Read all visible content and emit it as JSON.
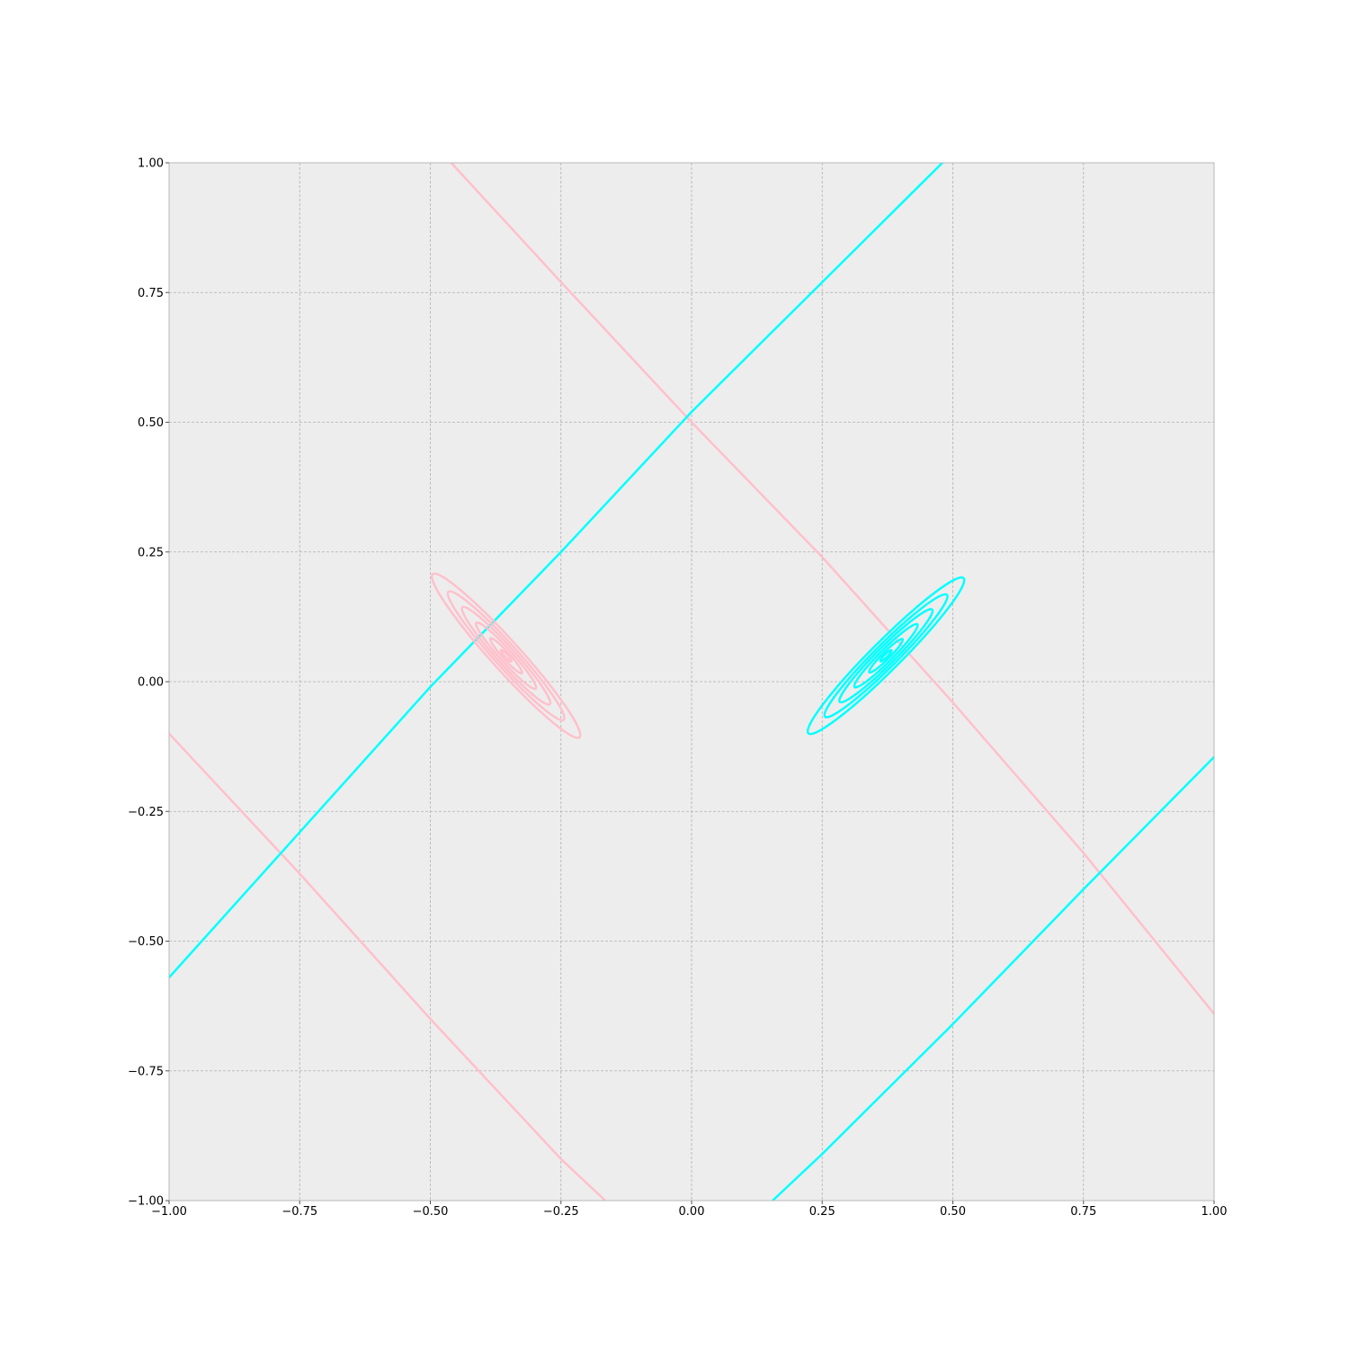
{
  "colors": {
    "figure_background": "#ffffff",
    "plot_background": "#ededed",
    "grid": "#b0b0b0",
    "frame": "#b8b8b8",
    "pink": "#ffc0cb",
    "cyan": "#00ffff"
  },
  "chart_data": {
    "type": "contour",
    "title": "",
    "xlabel": "",
    "ylabel": "",
    "xlim": [
      -1,
      1
    ],
    "ylim": [
      -1,
      1
    ],
    "grid": true,
    "legend": "none",
    "x_ticks": [
      -1.0,
      -0.75,
      -0.5,
      -0.25,
      0.0,
      0.25,
      0.5,
      0.75,
      1.0
    ],
    "y_ticks": [
      -1.0,
      -0.75,
      -0.5,
      -0.25,
      0.0,
      0.25,
      0.5,
      0.75,
      1.0
    ],
    "x_tick_labels": [
      "−1.00",
      "−0.75",
      "−0.50",
      "−0.25",
      "0.00",
      "0.25",
      "0.50",
      "0.75",
      "1.00"
    ],
    "y_tick_labels": [
      "−1.00",
      "−0.75",
      "−0.50",
      "−0.25",
      "0.00",
      "0.25",
      "0.50",
      "0.75",
      "1.00"
    ],
    "lines": [
      {
        "color": "pink",
        "points": [
          [
            -0.46,
            1.0
          ],
          [
            -0.25,
            0.77
          ],
          [
            0.0,
            0.5
          ],
          [
            0.25,
            0.24
          ],
          [
            0.5,
            -0.04
          ],
          [
            0.75,
            -0.33
          ],
          [
            1.0,
            -0.64
          ]
        ]
      },
      {
        "color": "pink",
        "points": [
          [
            -1.0,
            -0.1
          ],
          [
            -0.75,
            -0.37
          ],
          [
            -0.5,
            -0.65
          ],
          [
            -0.25,
            -0.92
          ],
          [
            -0.165,
            -1.0
          ]
        ]
      },
      {
        "color": "cyan",
        "points": [
          [
            -1.0,
            -0.57
          ],
          [
            -0.75,
            -0.29
          ],
          [
            -0.5,
            -0.01
          ],
          [
            -0.25,
            0.25
          ],
          [
            0.0,
            0.52
          ],
          [
            0.25,
            0.77
          ],
          [
            0.48,
            1.0
          ]
        ]
      },
      {
        "color": "cyan",
        "points": [
          [
            0.155,
            -1.0
          ],
          [
            0.25,
            -0.91
          ],
          [
            0.5,
            -0.66
          ],
          [
            0.75,
            -0.4
          ],
          [
            1.0,
            -0.145
          ]
        ]
      }
    ],
    "ellipse_groups": [
      {
        "color": "pink",
        "center": [
          -0.355,
          0.05
        ],
        "angle_deg": -48,
        "rings": [
          [
            0.21,
            0.028
          ],
          [
            0.165,
            0.022
          ],
          [
            0.125,
            0.017
          ],
          [
            0.085,
            0.012
          ],
          [
            0.045,
            0.007
          ],
          [
            0.015,
            0.003
          ]
        ]
      },
      {
        "color": "cyan",
        "center": [
          0.372,
          0.05
        ],
        "angle_deg": 45,
        "rings": [
          [
            0.21,
            0.028
          ],
          [
            0.165,
            0.022
          ],
          [
            0.125,
            0.017
          ],
          [
            0.085,
            0.012
          ],
          [
            0.045,
            0.007
          ],
          [
            0.015,
            0.003
          ]
        ]
      }
    ]
  }
}
